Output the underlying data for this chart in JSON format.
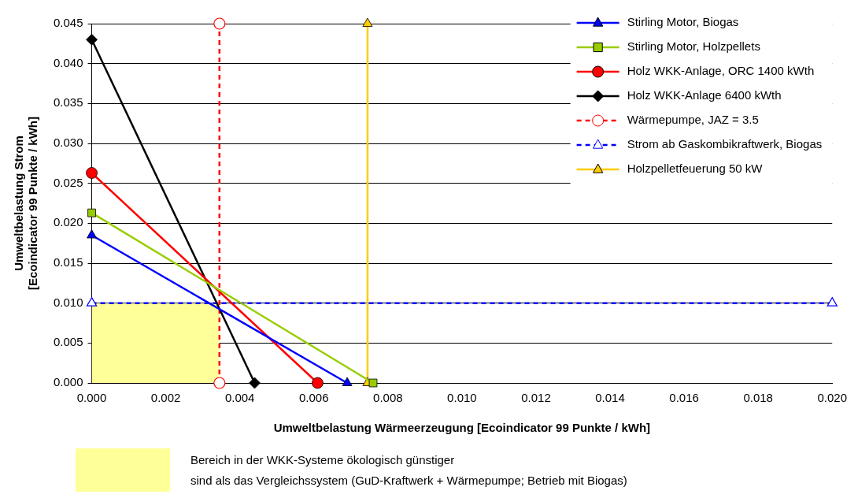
{
  "chart_data": {
    "type": "line",
    "xlabel": "Umweltbelastung Wärmeerzeugung [Ecoindicator 99 Punkte / kWh]",
    "ylabel": "Umweltbelastung Strom\n[Ecoindicator 99 Punkte / kWh]",
    "xlim": [
      0,
      0.02
    ],
    "xticks": [
      {
        "value": 0,
        "label": "0.000"
      },
      {
        "value": 0.002,
        "label": "0.002"
      },
      {
        "value": 0.004,
        "label": "0.004"
      },
      {
        "value": 0.006,
        "label": "0.006"
      },
      {
        "value": 0.008,
        "label": "0.008"
      },
      {
        "value": 0.01,
        "label": "0.010"
      },
      {
        "value": 0.012,
        "label": "0.012"
      },
      {
        "value": 0.014,
        "label": "0.014"
      },
      {
        "value": 0.016,
        "label": "0.016"
      },
      {
        "value": 0.018,
        "label": "0.018"
      },
      {
        "value": 0.02,
        "label": "0.020"
      }
    ],
    "ylim": [
      0,
      0.045
    ],
    "yticks": [
      {
        "value": 0,
        "label": "0.000"
      },
      {
        "value": 0.005,
        "label": "0.005"
      },
      {
        "value": 0.01,
        "label": "0.010"
      },
      {
        "value": 0.015,
        "label": "0.015"
      },
      {
        "value": 0.02,
        "label": "0.020"
      },
      {
        "value": 0.025,
        "label": "0.025"
      },
      {
        "value": 0.03,
        "label": "0.030"
      },
      {
        "value": 0.035,
        "label": "0.035"
      },
      {
        "value": 0.04,
        "label": "0.040"
      },
      {
        "value": 0.045,
        "label": "0.045"
      }
    ],
    "grid": "y",
    "legend": "top right",
    "series": [
      {
        "name": "Stirling Motor, Biogas",
        "color": "#0000ff",
        "x": [
          0,
          0.0069
        ],
        "values": [
          0.0185,
          0
        ],
        "marker": "triangle",
        "line_style": "solid"
      },
      {
        "name": "Stirling Motor, Holzpellets",
        "color": "#99cc00",
        "x": [
          0,
          0.0076
        ],
        "values": [
          0.0213,
          0
        ],
        "marker": "square",
        "line_style": "solid"
      },
      {
        "name": "Holz WKK-Anlage, ORC 1400 kWth",
        "color": "#ff0000",
        "x": [
          0,
          0.0061
        ],
        "values": [
          0.0263,
          0
        ],
        "marker": "circle",
        "line_style": "solid"
      },
      {
        "name": "Holz WKK-Anlage 6400 kWth",
        "color": "#000000",
        "x": [
          0,
          0.0044
        ],
        "values": [
          0.043,
          0
        ],
        "marker": "diamond",
        "line_style": "solid"
      },
      {
        "name": "Wärmepumpe, JAZ = 3.5",
        "color": "#ff0000",
        "x": [
          0.00345,
          0.00345
        ],
        "values": [
          0,
          0.045
        ],
        "marker": "circle",
        "line_style": "dashed"
      },
      {
        "name": "Strom ab Gaskombikraftwerk, Biogas",
        "color": "#0000ff",
        "x": [
          0,
          0.02
        ],
        "values": [
          0.01,
          0.01
        ],
        "marker": "triangle",
        "line_style": "dashed"
      },
      {
        "name": "Holzpelletfeuerung 50 kW",
        "color": "#ffcc00",
        "x": [
          0.00745,
          0.00745
        ],
        "values": [
          0,
          0.045
        ],
        "marker": "triangle",
        "line_style": "solid"
      },
      {
        "type": "area",
        "color": "#ffff99",
        "x": [
          0,
          0.00345
        ],
        "values": [
          0.01,
          0.01
        ]
      }
    ],
    "annotations": [
      "Bereich in der WKK-Systeme ökologisch günstiger\nsind als das Vergleichssystem (GuD-Kraftwerk + Wärmepumpe; Betrieb mit Biogas)"
    ]
  }
}
